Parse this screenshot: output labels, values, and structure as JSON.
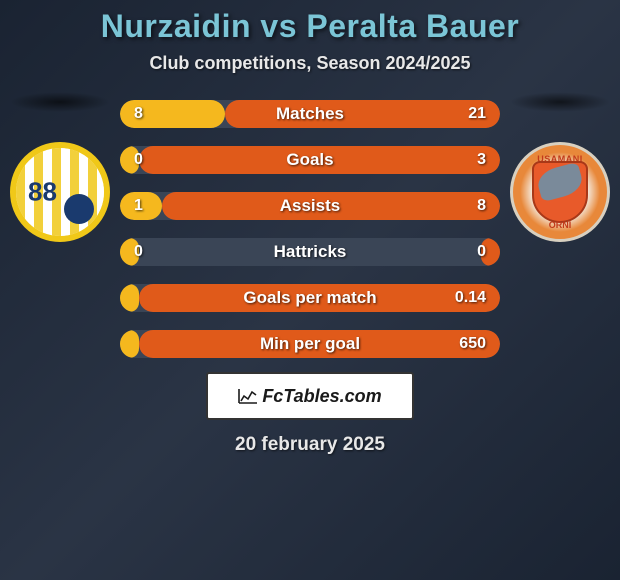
{
  "title": "Nurzaidin vs Peralta Bauer",
  "subtitle": "Club competitions, Season 2024/2025",
  "date": "20 february 2025",
  "brand": "FcTables.com",
  "colors": {
    "bar_base": "#3a4556",
    "left_fill": "#f5b81e",
    "right_fill": "#e05a1a",
    "title_color": "#7bc5d6"
  },
  "badges": {
    "left": {
      "number": "88"
    },
    "right": {
      "top_text": "USAMANI",
      "bottom_text": "ORNI"
    }
  },
  "stats": [
    {
      "label": "Matches",
      "left_val": "8",
      "right_val": "21",
      "left_pct": 27.6,
      "right_pct": 72.4
    },
    {
      "label": "Goals",
      "left_val": "0",
      "right_val": "3",
      "left_pct": 5,
      "right_pct": 95
    },
    {
      "label": "Assists",
      "left_val": "1",
      "right_val": "8",
      "left_pct": 11.1,
      "right_pct": 88.9
    },
    {
      "label": "Hattricks",
      "left_val": "0",
      "right_val": "0",
      "left_pct": 5,
      "right_pct": 5
    },
    {
      "label": "Goals per match",
      "left_val": "",
      "right_val": "0.14",
      "left_pct": 5,
      "right_pct": 95
    },
    {
      "label": "Min per goal",
      "left_val": "",
      "right_val": "650",
      "left_pct": 5,
      "right_pct": 95
    }
  ]
}
